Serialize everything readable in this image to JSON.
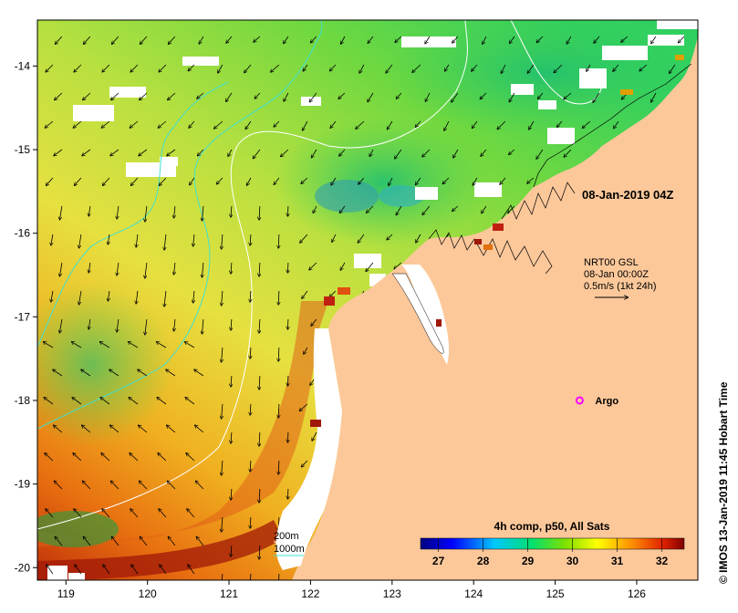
{
  "map": {
    "timestamp_label": "08-Jan-2019 04Z",
    "credit": "© IMOS 13-Jan-2019 11:45 Hobart Time",
    "x_ticks": [
      119,
      120,
      121,
      122,
      123,
      124,
      125,
      126
    ],
    "y_ticks": [
      -14,
      -15,
      -16,
      -17,
      -18,
      -19,
      -20
    ],
    "lon_range": [
      118.65,
      126.75
    ],
    "lat_range": [
      -20.15,
      -13.45
    ]
  },
  "current_legend": {
    "line1": "NRT00 GSL",
    "line2": "08-Jan 00:00Z",
    "line3": "0.5m/s (1kt 24h)"
  },
  "argo": {
    "label": "Argo",
    "lon": 125.3,
    "lat": -18.0,
    "color": "#ff00ff"
  },
  "isobaths": {
    "label_200": "200m",
    "label_1000": "1000m",
    "color_200": "#ffffff",
    "color_1000": "#40e0d0"
  },
  "colorbar": {
    "title": "4h comp, p50, All Sats",
    "ticks": [
      "27",
      "28",
      "29",
      "30",
      "31",
      "32"
    ],
    "range": [
      26.6,
      32.5
    ]
  },
  "colors": {
    "land": "#fcc89a",
    "cloud": "#ffffff"
  }
}
